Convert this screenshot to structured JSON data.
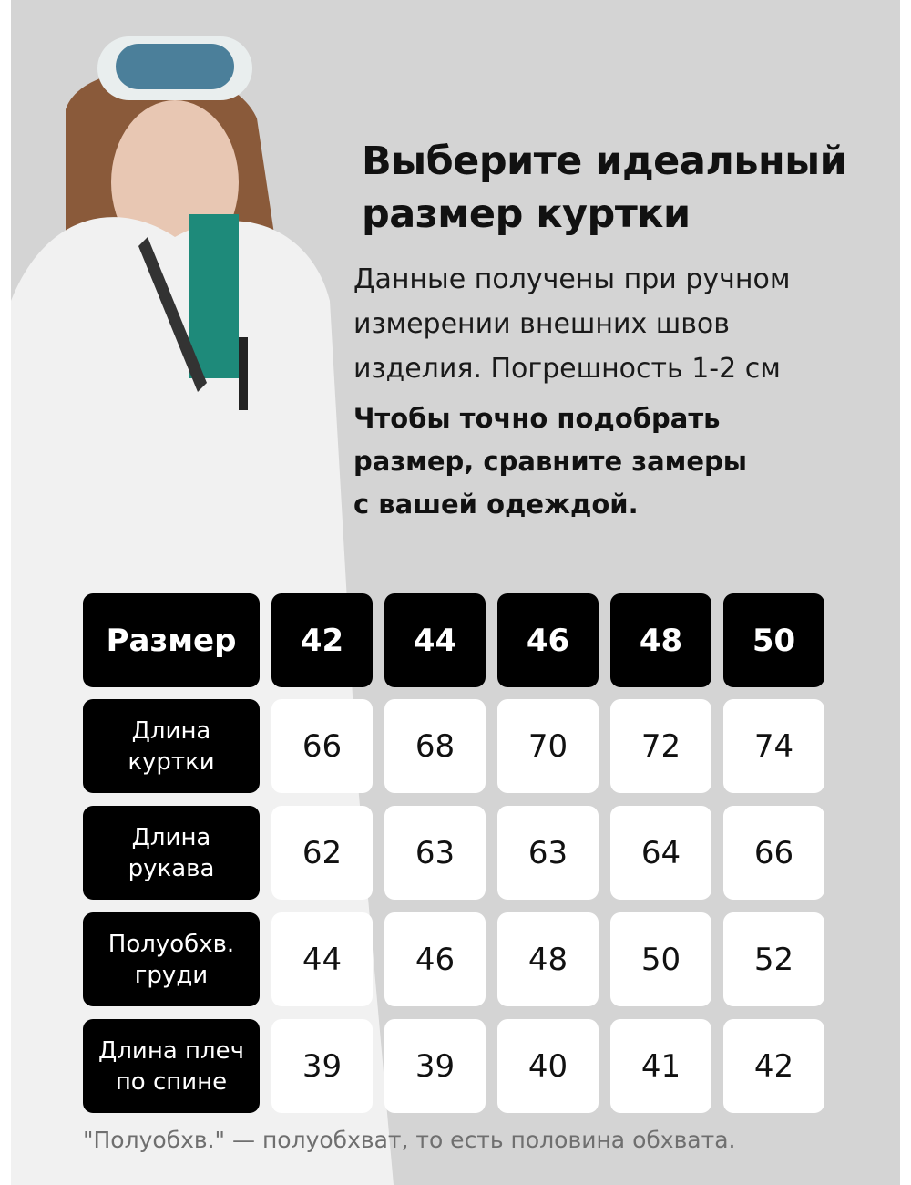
{
  "heading": {
    "line1": "Выберите идеальный",
    "line2": "размер куртки"
  },
  "description": {
    "line1": "Данные получены при ручном",
    "line2": "измерении внешних швов",
    "line3": "изделия. Погрешность 1-2 см"
  },
  "advice": {
    "line1": "Чтобы точно подобрать",
    "line2": "размер, сравните замеры",
    "line3": "с вашей одеждой."
  },
  "table": {
    "header_label": "Размер",
    "sizes": [
      "42",
      "44",
      "46",
      "48",
      "50"
    ],
    "rows": [
      {
        "label1": "Длина",
        "label2": "куртки",
        "values": [
          "66",
          "68",
          "70",
          "72",
          "74"
        ]
      },
      {
        "label1": "Длина",
        "label2": "рукава",
        "values": [
          "62",
          "63",
          "63",
          "64",
          "66"
        ]
      },
      {
        "label1": "Полуобхв.",
        "label2": "груди",
        "values": [
          "44",
          "46",
          "48",
          "50",
          "52"
        ]
      },
      {
        "label1": "Длина плеч",
        "label2": "по спине",
        "values": [
          "39",
          "39",
          "40",
          "41",
          "42"
        ]
      }
    ]
  },
  "footnote": "\"Полуобхв.\" — полуобхват, то есть половина обхвата.",
  "colors": {
    "background": "#d4d4d4",
    "header_cell": "#000000",
    "value_cell": "#ffffff",
    "footnote": "#6f6f6f"
  }
}
